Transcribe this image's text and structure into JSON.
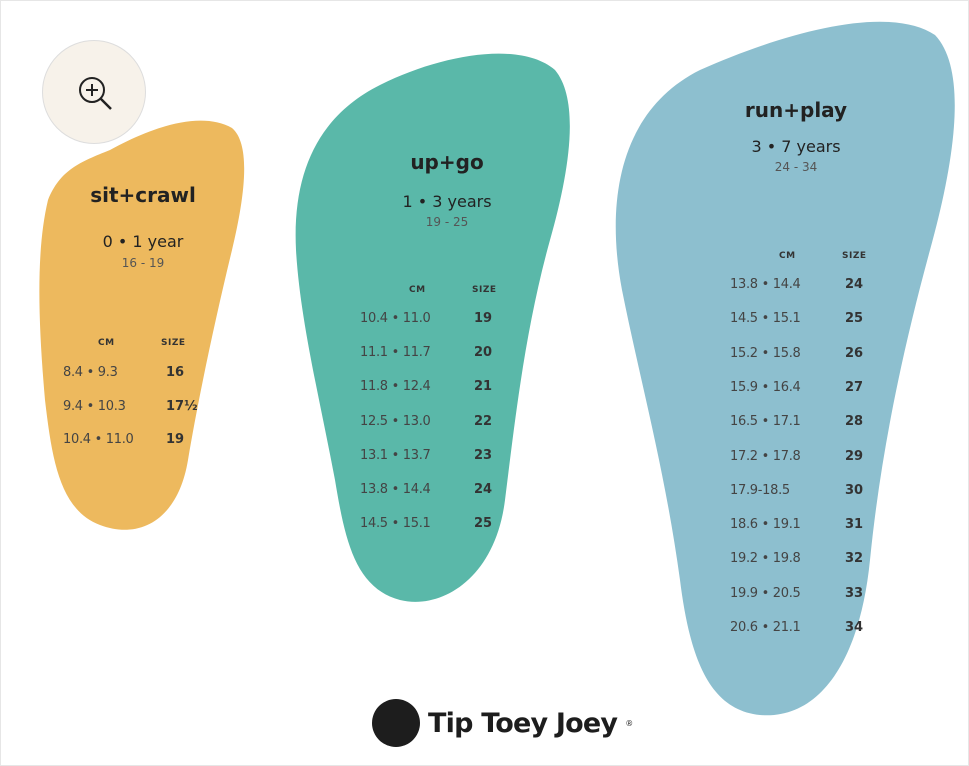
{
  "colors": {
    "sit_crawl": "#EDB95E",
    "up_go": "#5AB8A9",
    "run_play": "#8DBFCF"
  },
  "zoom_button": {
    "icon": "zoom-in-icon"
  },
  "charts": [
    {
      "title": "sit+crawl",
      "age": "0 • 1 year",
      "range": "16 - 19",
      "headers": [
        "CM",
        "SIZE"
      ],
      "rows": [
        [
          "8.4 • 9.3",
          "16"
        ],
        [
          "9.4 • 10.3",
          "17½"
        ],
        [
          "10.4 • 11.0",
          "19"
        ]
      ]
    },
    {
      "title": "up+go",
      "age": "1 • 3 years",
      "range": "19 - 25",
      "headers": [
        "CM",
        "SIZE"
      ],
      "rows": [
        [
          "10.4 • 11.0",
          "19"
        ],
        [
          "11.1 • 11.7",
          "20"
        ],
        [
          "11.8 • 12.4",
          "21"
        ],
        [
          "12.5 • 13.0",
          "22"
        ],
        [
          "13.1 • 13.7",
          "23"
        ],
        [
          "13.8 • 14.4",
          "24"
        ],
        [
          "14.5 • 15.1",
          "25"
        ]
      ]
    },
    {
      "title": "run+play",
      "age": "3 • 7 years",
      "range": "24 - 34",
      "headers": [
        "CM",
        "SIZE"
      ],
      "rows": [
        [
          "13.8 • 14.4",
          "24"
        ],
        [
          "14.5 • 15.1",
          "25"
        ],
        [
          "15.2 • 15.8",
          "26"
        ],
        [
          "15.9 • 16.4",
          "27"
        ],
        [
          "16.5 • 17.1",
          "28"
        ],
        [
          "17.2 • 17.8",
          "29"
        ],
        [
          "17.9-18.5",
          "30"
        ],
        [
          "18.6 • 19.1",
          "31"
        ],
        [
          "19.2 • 19.8",
          "32"
        ],
        [
          "19.9 • 20.5",
          "33"
        ],
        [
          "20.6 • 21.1",
          "34"
        ]
      ]
    }
  ],
  "brand": {
    "name": "Tip Toey Joey",
    "trademark": "®"
  }
}
